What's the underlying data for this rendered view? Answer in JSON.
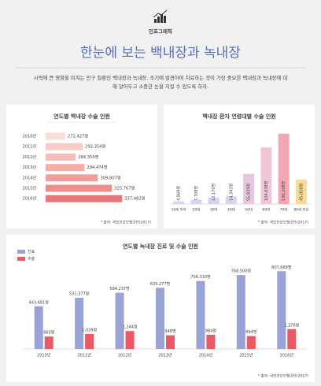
{
  "header": {
    "label": "인포그래픽",
    "title": "한눈에 보는 백내장과 녹내장",
    "description": "시력에 큰 영향을 미치는 안구 질환인 백내장과 녹내장. 조기에 발견하여 치료하는 것이 가장 중요한 백내장과 녹내장에 대해 알아두고 소중한 눈을 지킬 수 있도록 하자."
  },
  "chart_data": [
    {
      "type": "bar",
      "orientation": "horizontal",
      "title": "연도별 백내장 수술 인원",
      "categories": [
        "2010년",
        "2011년",
        "2012년",
        "2013년",
        "2014년",
        "2015년",
        "2016년"
      ],
      "values": [
        272427,
        292354,
        284359,
        294474,
        309807,
        325767,
        337482
      ],
      "value_labels": [
        "272,427명",
        "292,354명",
        "284,359명",
        "294,474명",
        "309,807명",
        "325,767명",
        "337,482명"
      ],
      "colors": [
        "#fadcd8",
        "#f8ccc7",
        "#f6bdb7",
        "#f3aea8",
        "#f09f99",
        "#ec8e8a",
        "#e8767b"
      ],
      "xlim": [
        250000,
        340000
      ],
      "source": "* 출처: 국민건강보험공단(2017)"
    },
    {
      "type": "bar",
      "title": "백내장 환자 연령대별 수술 인원",
      "categories": [
        "19세 이하",
        "20대",
        "30대",
        "40대",
        "50대",
        "60대",
        "70대",
        "80세 이상"
      ],
      "values": [
        4869,
        7709,
        12170,
        14343,
        55839,
        104838,
        130208,
        45058
      ],
      "value_labels": [
        "4,869명",
        "7,709명",
        "12,170명",
        "14,343명",
        "55,839명",
        "104,838명",
        "130,208명",
        "45,058명"
      ],
      "colors": [
        "#d9d3ec",
        "#d9d3ec",
        "#d9d3ec",
        "#d9d3ec",
        "#e6c6e0",
        "#f2c6d9",
        "#f3a7b3",
        "#f8dc95"
      ],
      "ylim": [
        0,
        140000
      ],
      "source": "* 출처: 국민건강보험공단(2017)"
    },
    {
      "type": "bar",
      "title": "연도별 녹내장 진료 및 수술 인원",
      "categories": [
        "2010년",
        "2011년",
        "2012년",
        "2013년",
        "2014년",
        "2015년",
        "2016년"
      ],
      "series": [
        {
          "name": "진료",
          "color": "#9aa3d6",
          "values": [
            443681,
            531377,
            584237,
            635277,
            706310,
            768500,
            807668
          ],
          "value_labels": [
            "443,681명",
            "531,377명",
            "584,237명",
            "635,277명",
            "706,310명",
            "768,500명",
            "807,668명"
          ]
        },
        {
          "name": "수술",
          "color": "#e95a62",
          "axis": "y2",
          "values": [
            860,
            1039,
            1244,
            948,
            984,
            894,
            1376
          ],
          "value_labels": [
            "860명",
            "1,039명",
            "1,244명",
            "948명",
            "984명",
            "894명",
            "1,376명"
          ]
        }
      ],
      "ylim": [
        0,
        900000
      ],
      "y2lim": [
        0,
        6000
      ],
      "source": "* 출처: 국민건강보험공단(2017)"
    }
  ]
}
